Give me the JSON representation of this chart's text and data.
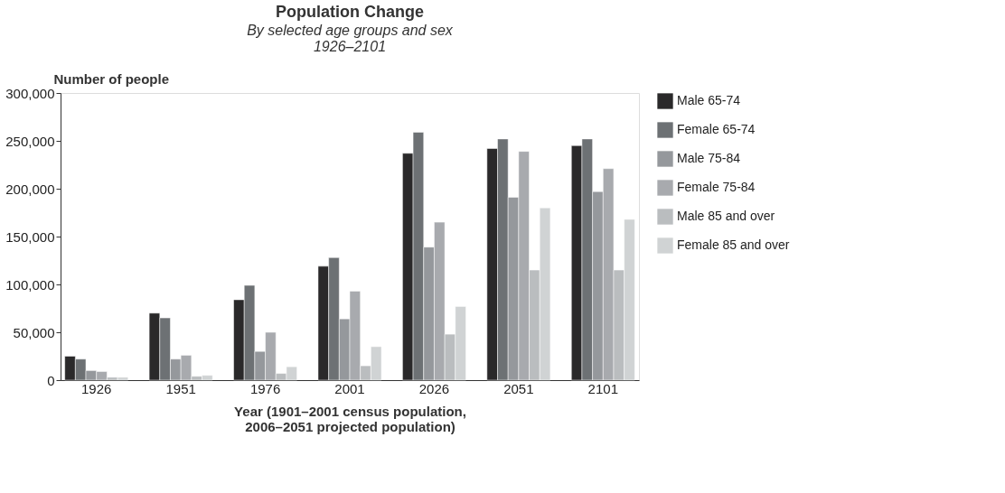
{
  "chart_data": {
    "type": "bar",
    "title": "Population Change",
    "subtitle": "By selected age groups and sex\n1926–2101",
    "xlabel": "Year (1901–2001 census population,\n2006–2051 projected population)",
    "ylabel": "Number of people",
    "categories": [
      "1926",
      "1951",
      "1976",
      "2001",
      "2026",
      "2051",
      "2101"
    ],
    "series": [
      {
        "name": "Male 65-74",
        "color": "#2a292a",
        "values": [
          25000,
          70000,
          84000,
          119000,
          237000,
          242000,
          245000
        ]
      },
      {
        "name": "Female 65-74",
        "color": "#6d7174",
        "values": [
          22000,
          65000,
          99000,
          128000,
          259000,
          252000,
          252000
        ]
      },
      {
        "name": "Male 75-84",
        "color": "#95989c",
        "values": [
          10000,
          22000,
          30000,
          64000,
          139000,
          191000,
          197000
        ]
      },
      {
        "name": "Female 75-84",
        "color": "#a8aaae",
        "values": [
          9000,
          26000,
          50000,
          93000,
          165000,
          239000,
          221000
        ]
      },
      {
        "name": "Male 85 and over",
        "color": "#babdbf",
        "values": [
          3000,
          4000,
          7000,
          15000,
          48000,
          115000,
          115000
        ]
      },
      {
        "name": "Female 85 and over",
        "color": "#d0d3d4",
        "values": [
          3000,
          5000,
          14000,
          35000,
          77000,
          180000,
          168000
        ]
      }
    ],
    "ylim": [
      0,
      300000
    ],
    "yticks": [
      0,
      {
        "value": 50000,
        "label": "50,000"
      },
      {
        "value": 100000,
        "label": "100,000"
      },
      {
        "value": 150000,
        "label": "150,000"
      },
      {
        "value": 200000,
        "label": "200,000"
      },
      {
        "value": 250000,
        "label": "250,000"
      },
      {
        "value": 300000,
        "label": "300,000"
      }
    ],
    "grid": false,
    "legend": "right"
  }
}
